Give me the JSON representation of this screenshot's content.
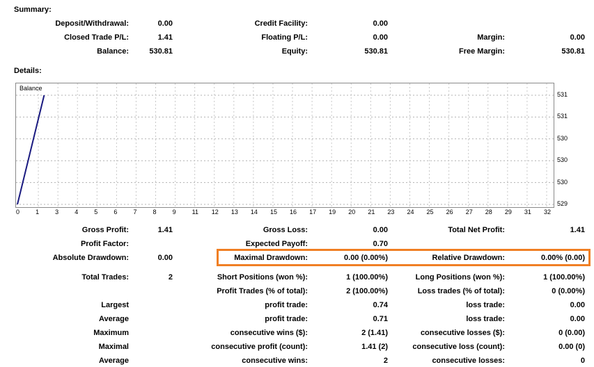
{
  "summary": {
    "heading": "Summary:",
    "deposit_label": "Deposit/Withdrawal:",
    "deposit": "0.00",
    "credit_label": "Credit Facility:",
    "credit": "0.00",
    "closed_label": "Closed Trade P/L:",
    "closed": "1.41",
    "floating_label": "Floating P/L:",
    "floating": "0.00",
    "margin_label": "Margin:",
    "margin": "0.00",
    "balance_label": "Balance:",
    "balance": "530.81",
    "equity_label": "Equity:",
    "equity": "530.81",
    "free_margin_label": "Free Margin:",
    "free_margin": "530.81"
  },
  "details": {
    "heading": "Details:"
  },
  "chart_data": {
    "type": "line",
    "title": "Balance",
    "x_ticks": [
      "0",
      "1",
      "3",
      "4",
      "5",
      "6",
      "7",
      "8",
      "9",
      "11",
      "12",
      "13",
      "14",
      "15",
      "16",
      "17",
      "19",
      "20",
      "21",
      "23",
      "24",
      "25",
      "26",
      "27",
      "28",
      "29",
      "31",
      "32"
    ],
    "y_ticks": [
      "531",
      "531",
      "530",
      "530",
      "530",
      "529"
    ],
    "series": [
      {
        "points": [
          [
            0,
            529.4
          ],
          [
            1.6,
            531.0
          ]
        ]
      }
    ],
    "grid": true,
    "line_color": "#1a1a80"
  },
  "stats": {
    "gross_profit_label": "Gross Profit:",
    "gross_profit": "1.41",
    "gross_loss_label": "Gross Loss:",
    "gross_loss": "0.00",
    "total_net_label": "Total Net Profit:",
    "total_net": "1.41",
    "profit_factor_label": "Profit Factor:",
    "profit_factor": "",
    "expected_payoff_label": "Expected Payoff:",
    "expected_payoff": "0.70",
    "abs_dd_label": "Absolute Drawdown:",
    "abs_dd": "0.00",
    "max_dd_label": "Maximal Drawdown:",
    "max_dd": "0.00 (0.00%)",
    "rel_dd_label": "Relative Drawdown:",
    "rel_dd": "0.00% (0.00)",
    "total_trades_label": "Total Trades:",
    "total_trades": "2",
    "short_label": "Short Positions (won %):",
    "short": "1 (100.00%)",
    "long_label": "Long Positions (won %):",
    "long": "1 (100.00%)",
    "profit_trades_label": "Profit Trades (% of total):",
    "profit_trades": "2 (100.00%)",
    "loss_trades_label": "Loss trades (% of total):",
    "loss_trades": "0 (0.00%)",
    "largest_label": "Largest",
    "largest_profit_label": "profit trade:",
    "largest_profit": "0.74",
    "largest_loss_label": "loss trade:",
    "largest_loss": "0.00",
    "average_label": "Average",
    "avg_profit_label": "profit trade:",
    "avg_profit": "0.71",
    "avg_loss_label": "loss trade:",
    "avg_loss": "0.00",
    "maximum_label": "Maximum",
    "max_cons_wins_label": "consecutive wins ($):",
    "max_cons_wins": "2 (1.41)",
    "max_cons_losses_label": "consecutive losses ($):",
    "max_cons_losses": "0 (0.00)",
    "maximal_label": "Maximal",
    "maximal_profit_label": "consecutive profit (count):",
    "maximal_profit": "1.41 (2)",
    "maximal_loss_label": "consecutive loss (count):",
    "maximal_loss": "0.00 (0)",
    "average2_label": "Average",
    "avg_cons_wins_label": "consecutive wins:",
    "avg_cons_wins": "2",
    "avg_cons_losses_label": "consecutive losses:",
    "avg_cons_losses": "0"
  }
}
